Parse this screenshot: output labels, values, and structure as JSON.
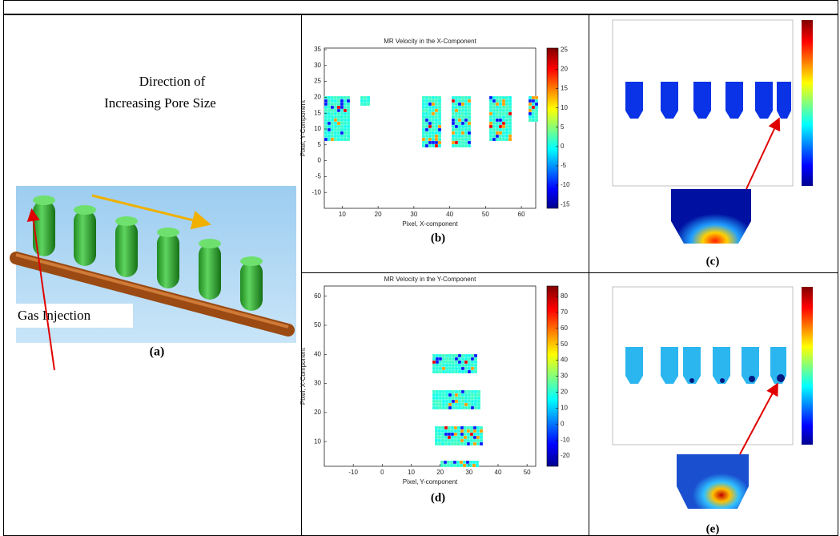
{
  "panels": {
    "a": {
      "annotation": [
        "Direction of",
        "Increasing Pore Size"
      ],
      "inset_label": "Gas Injection",
      "label": "(a)"
    },
    "b": {
      "title": "MR Velocity in the X-Component",
      "xlabel": "Pixel, X-component",
      "ylabel": "Pixel, Y-Component",
      "xlim": [
        5,
        64
      ],
      "ylim": [
        -15,
        35.5
      ],
      "xticks": [
        10,
        20,
        30,
        40,
        50,
        60
      ],
      "yticks": [
        -10,
        -5,
        0,
        5,
        10,
        15,
        20,
        25,
        30,
        35
      ],
      "clim": [
        -16,
        25.5
      ],
      "cticks": [
        -15,
        -10,
        -5,
        0,
        5,
        10,
        15,
        20,
        25
      ],
      "label": "(b)"
    },
    "c": {
      "label": "(c)"
    },
    "d": {
      "title": "MR Velocity in the Y-Component",
      "xlabel": "Pixel, Y-component",
      "ylabel": "Pixel, X-Component",
      "xlim": [
        -20,
        53
      ],
      "ylim": [
        1.5,
        63.5
      ],
      "xticks": [
        -10,
        0,
        10,
        20,
        30,
        40,
        50
      ],
      "yticks": [
        10,
        20,
        30,
        40,
        50,
        60
      ],
      "clim": [
        -26.5,
        86.5
      ],
      "cticks": [
        -20,
        -10,
        0,
        10,
        20,
        30,
        40,
        50,
        60,
        70,
        80
      ],
      "label": "(d)"
    },
    "e": {
      "label": "(e)"
    }
  }
}
